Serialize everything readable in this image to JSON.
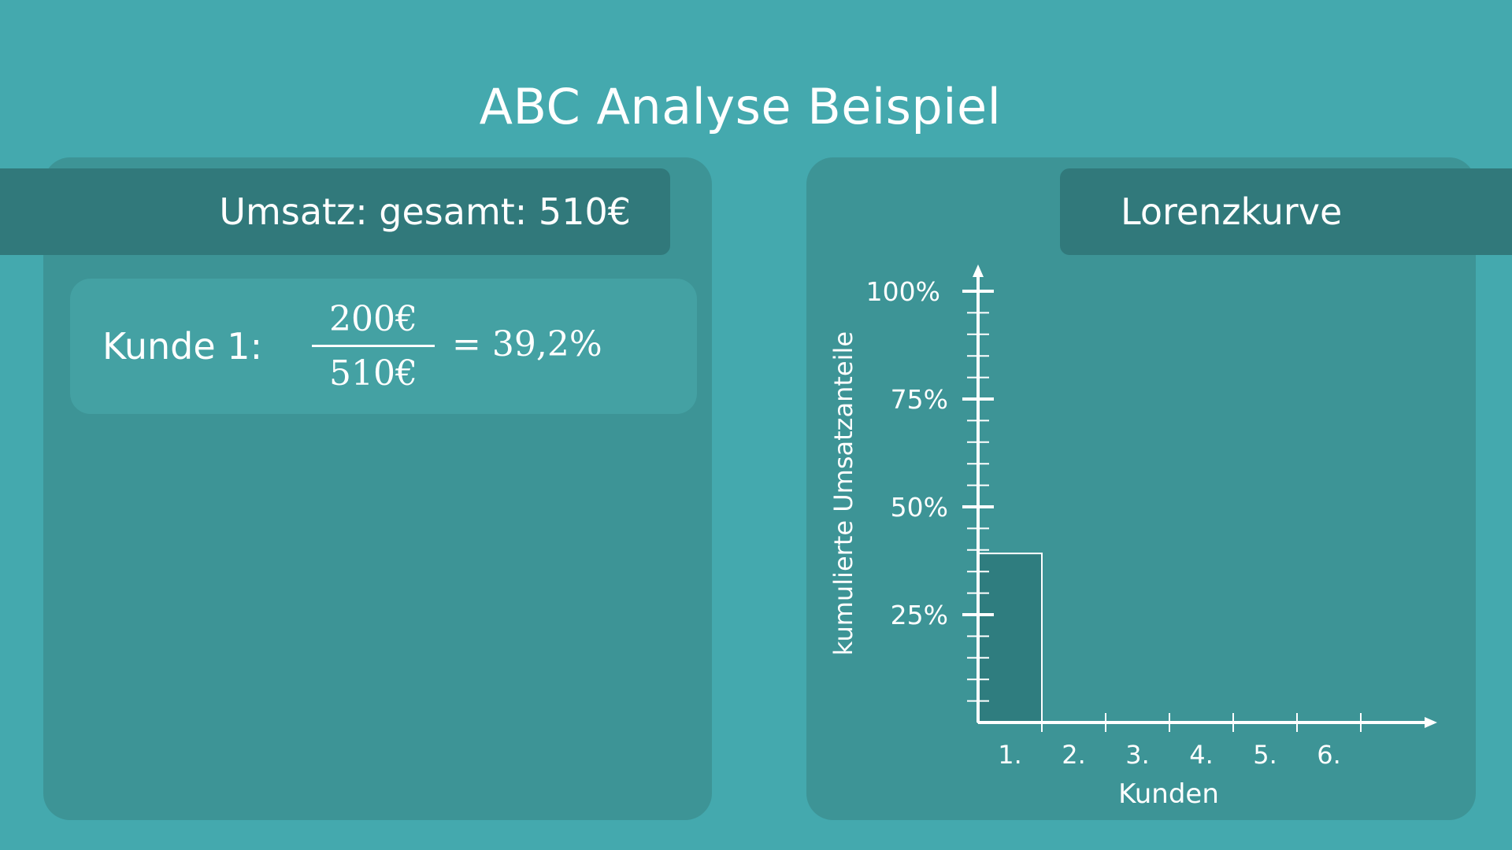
{
  "title": "ABC Analyse Beispiel",
  "left_panel": {
    "banner": "Umsatz: gesamt: 510€",
    "calculation": {
      "label": "Kunde 1:",
      "numerator": "200€",
      "denominator": "510€",
      "result": "= 39,2%"
    }
  },
  "right_panel": {
    "banner": "Lorenzkurve"
  },
  "chart_data": {
    "type": "bar",
    "title": "Lorenzkurve",
    "xlabel": "Kunden",
    "ylabel": "kumulierte Umsatzanteile",
    "categories": [
      "1.",
      "2.",
      "3.",
      "4.",
      "5.",
      "6."
    ],
    "values": [
      39.2,
      null,
      null,
      null,
      null,
      null
    ],
    "y_ticks": [
      "25%",
      "50%",
      "75%",
      "100%"
    ],
    "ylim": [
      0,
      100
    ],
    "grid": false,
    "colors": {
      "bar_fill": "#2f7d7f",
      "bar_stroke": "#ffffff",
      "axis": "#ffffff"
    }
  }
}
